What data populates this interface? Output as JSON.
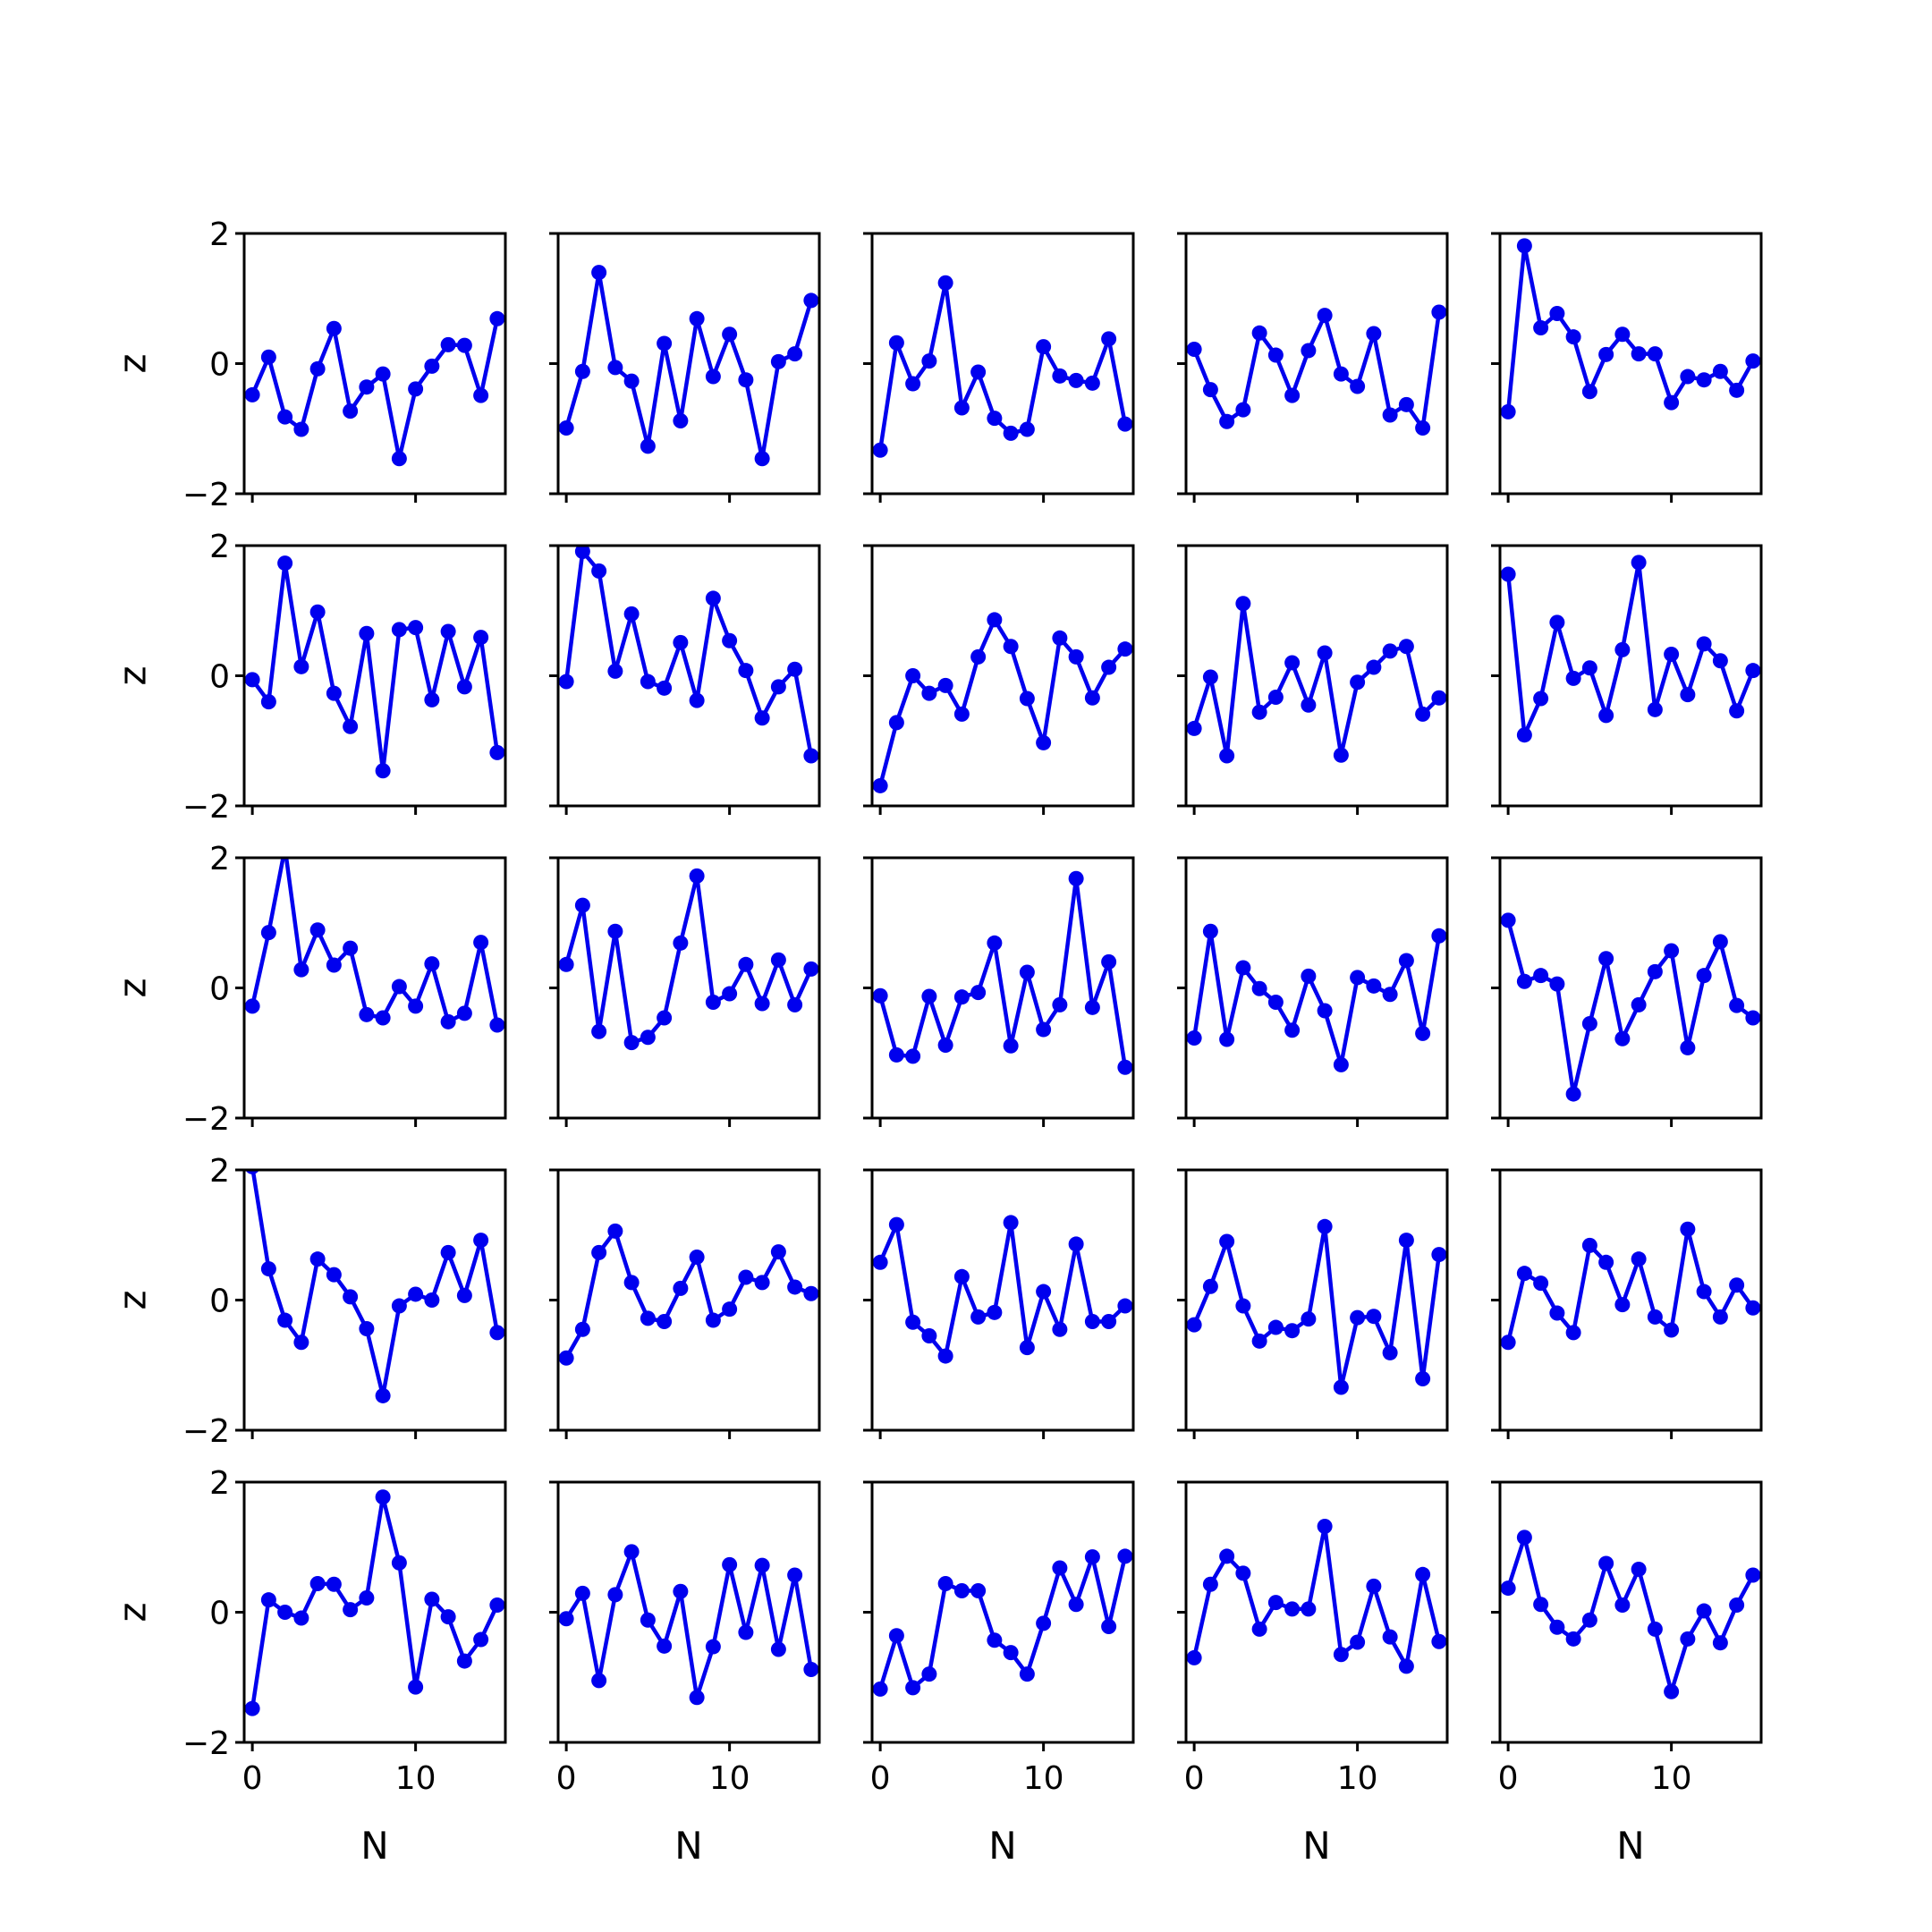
{
  "figure": {
    "rows": 5,
    "cols": 5,
    "line_color": "#0000ee",
    "xlabel": "N",
    "ylabel": "z",
    "ylim": [
      -2,
      2
    ],
    "xlim": [
      -0.5,
      15.5
    ],
    "y_ticks": [
      {
        "value": 2,
        "label": "2"
      },
      {
        "value": 0,
        "label": "0"
      },
      {
        "value": -2,
        "label": "−2"
      }
    ],
    "x_ticks": [
      {
        "value": 0,
        "label": "0"
      },
      {
        "value": 10,
        "label": "10"
      }
    ]
  },
  "chart_data": [
    {
      "type": "line",
      "x": [
        0,
        1,
        2,
        3,
        4,
        5,
        6,
        7,
        8,
        9,
        10,
        11,
        12,
        13,
        14,
        15
      ],
      "values": [
        -0.48,
        0.1,
        -0.82,
        -1.01,
        -0.08,
        0.54,
        -0.73,
        -0.36,
        -0.16,
        -1.46,
        -0.39,
        -0.04,
        0.29,
        0.28,
        -0.49,
        0.69
      ]
    },
    {
      "type": "line",
      "x": [
        0,
        1,
        2,
        3,
        4,
        5,
        6,
        7,
        8,
        9,
        10,
        11,
        12,
        13,
        14,
        15
      ],
      "values": [
        -0.99,
        -0.12,
        1.4,
        -0.06,
        -0.27,
        -1.27,
        0.31,
        -0.88,
        0.69,
        -0.2,
        0.45,
        -0.25,
        -1.46,
        0.03,
        0.15,
        0.97
      ]
    },
    {
      "type": "line",
      "x": [
        0,
        1,
        2,
        3,
        4,
        5,
        6,
        7,
        8,
        9,
        10,
        11,
        12,
        13,
        14,
        15
      ],
      "values": [
        -1.33,
        0.32,
        -0.31,
        0.04,
        1.24,
        -0.68,
        -0.13,
        -0.84,
        -1.07,
        -1.01,
        0.26,
        -0.19,
        -0.26,
        -0.3,
        0.38,
        -0.93
      ]
    },
    {
      "type": "line",
      "x": [
        0,
        1,
        2,
        3,
        4,
        5,
        6,
        7,
        8,
        9,
        10,
        11,
        12,
        13,
        14,
        15
      ],
      "values": [
        0.22,
        -0.4,
        -0.89,
        -0.71,
        0.47,
        0.13,
        -0.49,
        0.2,
        0.74,
        -0.16,
        -0.35,
        0.46,
        -0.79,
        -0.63,
        -0.99,
        0.79
      ]
    },
    {
      "type": "line",
      "x": [
        0,
        1,
        2,
        3,
        4,
        5,
        6,
        7,
        8,
        9,
        10,
        11,
        12,
        13,
        14,
        15
      ],
      "values": [
        -0.74,
        1.81,
        0.55,
        0.77,
        0.41,
        -0.43,
        0.14,
        0.45,
        0.15,
        0.15,
        -0.6,
        -0.2,
        -0.25,
        -0.12,
        -0.41,
        0.04
      ]
    },
    {
      "type": "line",
      "x": [
        0,
        1,
        2,
        3,
        4,
        5,
        6,
        7,
        8,
        9,
        10,
        11,
        12,
        13,
        14,
        15
      ],
      "values": [
        -0.06,
        -0.4,
        1.73,
        0.14,
        0.98,
        -0.27,
        -0.78,
        0.65,
        -1.46,
        0.71,
        0.74,
        -0.37,
        0.68,
        -0.17,
        0.59,
        -1.18
      ]
    },
    {
      "type": "line",
      "x": [
        0,
        1,
        2,
        3,
        4,
        5,
        6,
        7,
        8,
        9,
        10,
        11,
        12,
        13,
        14,
        15
      ],
      "values": [
        -0.09,
        1.91,
        1.61,
        0.07,
        0.95,
        -0.09,
        -0.19,
        0.51,
        -0.38,
        1.19,
        0.54,
        0.08,
        -0.65,
        -0.17,
        0.1,
        -1.23
      ]
    },
    {
      "type": "line",
      "x": [
        0,
        1,
        2,
        3,
        4,
        5,
        6,
        7,
        8,
        9,
        10,
        11,
        12,
        13,
        14,
        15
      ],
      "values": [
        -1.69,
        -0.72,
        0.0,
        -0.27,
        -0.15,
        -0.59,
        0.29,
        0.86,
        0.45,
        -0.35,
        -1.03,
        0.58,
        0.29,
        -0.34,
        0.13,
        0.41
      ]
    },
    {
      "type": "line",
      "x": [
        0,
        1,
        2,
        3,
        4,
        5,
        6,
        7,
        8,
        9,
        10,
        11,
        12,
        13,
        14,
        15
      ],
      "values": [
        -0.81,
        -0.02,
        -1.23,
        1.11,
        -0.56,
        -0.33,
        0.2,
        -0.45,
        0.35,
        -1.22,
        -0.1,
        0.13,
        0.38,
        0.45,
        -0.59,
        -0.34
      ]
    },
    {
      "type": "line",
      "x": [
        0,
        1,
        2,
        3,
        4,
        5,
        6,
        7,
        8,
        9,
        10,
        11,
        12,
        13,
        14,
        15
      ],
      "values": [
        1.56,
        -0.91,
        -0.35,
        0.82,
        -0.04,
        0.12,
        -0.61,
        0.4,
        1.74,
        -0.52,
        0.33,
        -0.29,
        0.49,
        0.23,
        -0.54,
        0.08
      ]
    },
    {
      "type": "line",
      "x": [
        0,
        1,
        2,
        3,
        4,
        5,
        6,
        7,
        8,
        9,
        10,
        11,
        12,
        13,
        14,
        15
      ],
      "values": [
        -0.28,
        0.85,
        2.15,
        0.28,
        0.89,
        0.35,
        0.61,
        -0.41,
        -0.46,
        0.02,
        -0.28,
        0.37,
        -0.52,
        -0.39,
        0.7,
        -0.57
      ]
    },
    {
      "type": "line",
      "x": [
        0,
        1,
        2,
        3,
        4,
        5,
        6,
        7,
        8,
        9,
        10,
        11,
        12,
        13,
        14,
        15
      ],
      "values": [
        0.36,
        1.27,
        -0.67,
        0.87,
        -0.84,
        -0.76,
        -0.46,
        0.69,
        1.72,
        -0.22,
        -0.09,
        0.36,
        -0.24,
        0.43,
        -0.26,
        0.29
      ]
    },
    {
      "type": "line",
      "x": [
        0,
        1,
        2,
        3,
        4,
        5,
        6,
        7,
        8,
        9,
        10,
        11,
        12,
        13,
        14,
        15
      ],
      "values": [
        -0.12,
        -1.03,
        -1.05,
        -0.13,
        -0.88,
        -0.14,
        -0.07,
        0.69,
        -0.89,
        0.24,
        -0.64,
        -0.26,
        1.68,
        -0.3,
        0.4,
        -1.22
      ]
    },
    {
      "type": "line",
      "x": [
        0,
        1,
        2,
        3,
        4,
        5,
        6,
        7,
        8,
        9,
        10,
        11,
        12,
        13,
        14,
        15
      ],
      "values": [
        -0.77,
        0.87,
        -0.79,
        0.31,
        -0.01,
        -0.22,
        -0.65,
        0.18,
        -0.35,
        -1.18,
        0.16,
        0.03,
        -0.1,
        0.42,
        -0.7,
        0.8
      ]
    },
    {
      "type": "line",
      "x": [
        0,
        1,
        2,
        3,
        4,
        5,
        6,
        7,
        8,
        9,
        10,
        11,
        12,
        13,
        14,
        15
      ],
      "values": [
        1.04,
        0.1,
        0.19,
        0.06,
        -1.63,
        -0.55,
        0.45,
        -0.78,
        -0.26,
        0.25,
        0.57,
        -0.92,
        0.19,
        0.71,
        -0.27,
        -0.46
      ]
    },
    {
      "type": "line",
      "x": [
        0,
        1,
        2,
        3,
        4,
        5,
        6,
        7,
        8,
        9,
        10,
        11,
        12,
        13,
        14,
        15
      ],
      "values": [
        2.05,
        0.48,
        -0.31,
        -0.65,
        0.63,
        0.39,
        0.05,
        -0.44,
        -1.47,
        -0.09,
        0.09,
        0.0,
        0.73,
        0.07,
        0.92,
        -0.5
      ]
    },
    {
      "type": "line",
      "x": [
        0,
        1,
        2,
        3,
        4,
        5,
        6,
        7,
        8,
        9,
        10,
        11,
        12,
        13,
        14,
        15
      ],
      "values": [
        -0.89,
        -0.45,
        0.73,
        1.06,
        0.27,
        -0.28,
        -0.33,
        0.18,
        0.66,
        -0.31,
        -0.14,
        0.35,
        0.27,
        0.74,
        0.2,
        0.1
      ]
    },
    {
      "type": "line",
      "x": [
        0,
        1,
        2,
        3,
        4,
        5,
        6,
        7,
        8,
        9,
        10,
        11,
        12,
        13,
        14,
        15
      ],
      "values": [
        0.58,
        1.16,
        -0.34,
        -0.55,
        -0.86,
        0.36,
        -0.26,
        -0.19,
        1.19,
        -0.73,
        0.13,
        -0.45,
        0.86,
        -0.33,
        -0.33,
        -0.09
      ]
    },
    {
      "type": "line",
      "x": [
        0,
        1,
        2,
        3,
        4,
        5,
        6,
        7,
        8,
        9,
        10,
        11,
        12,
        13,
        14,
        15
      ],
      "values": [
        -0.38,
        0.21,
        0.9,
        -0.09,
        -0.63,
        -0.42,
        -0.47,
        -0.29,
        1.13,
        -1.34,
        -0.27,
        -0.25,
        -0.81,
        0.92,
        -1.21,
        0.7
      ]
    },
    {
      "type": "line",
      "x": [
        0,
        1,
        2,
        3,
        4,
        5,
        6,
        7,
        8,
        9,
        10,
        11,
        12,
        13,
        14,
        15
      ],
      "values": [
        -0.65,
        0.41,
        0.26,
        -0.2,
        -0.5,
        0.84,
        0.58,
        -0.07,
        0.63,
        -0.26,
        -0.46,
        1.09,
        0.13,
        -0.26,
        0.23,
        -0.12
      ]
    },
    {
      "type": "line",
      "x": [
        0,
        1,
        2,
        3,
        4,
        5,
        6,
        7,
        8,
        9,
        10,
        11,
        12,
        13,
        14,
        15
      ],
      "values": [
        -1.48,
        0.19,
        0.0,
        -0.09,
        0.44,
        0.43,
        0.04,
        0.22,
        1.77,
        0.76,
        -1.15,
        0.2,
        -0.07,
        -0.75,
        -0.42,
        0.11
      ]
    },
    {
      "type": "line",
      "x": [
        0,
        1,
        2,
        3,
        4,
        5,
        6,
        7,
        8,
        9,
        10,
        11,
        12,
        13,
        14,
        15
      ],
      "values": [
        -0.1,
        0.29,
        -1.05,
        0.27,
        0.93,
        -0.12,
        -0.52,
        0.32,
        -1.31,
        -0.53,
        0.73,
        -0.31,
        0.72,
        -0.57,
        0.57,
        -0.88
      ]
    },
    {
      "type": "line",
      "x": [
        0,
        1,
        2,
        3,
        4,
        5,
        6,
        7,
        8,
        9,
        10,
        11,
        12,
        13,
        14,
        15
      ],
      "values": [
        -1.18,
        -0.36,
        -1.16,
        -0.95,
        0.44,
        0.33,
        0.33,
        -0.43,
        -0.62,
        -0.95,
        -0.17,
        0.68,
        0.12,
        0.85,
        -0.22,
        0.86
      ]
    },
    {
      "type": "line",
      "x": [
        0,
        1,
        2,
        3,
        4,
        5,
        6,
        7,
        8,
        9,
        10,
        11,
        12,
        13,
        14,
        15
      ],
      "values": [
        -0.7,
        0.43,
        0.86,
        0.6,
        -0.26,
        0.15,
        0.05,
        0.05,
        1.32,
        -0.65,
        -0.46,
        0.4,
        -0.38,
        -0.83,
        0.58,
        -0.45
      ]
    },
    {
      "type": "line",
      "x": [
        0,
        1,
        2,
        3,
        4,
        5,
        6,
        7,
        8,
        9,
        10,
        11,
        12,
        13,
        14,
        15
      ],
      "values": [
        0.37,
        1.15,
        0.12,
        -0.23,
        -0.41,
        -0.12,
        0.75,
        0.11,
        0.66,
        -0.26,
        -1.22,
        -0.41,
        0.02,
        -0.47,
        0.11,
        0.57
      ]
    }
  ]
}
